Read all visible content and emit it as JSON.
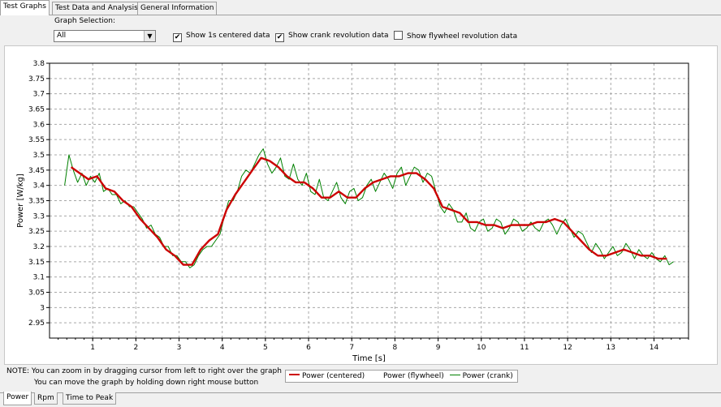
{
  "tabs_top": [
    "Test Graphs",
    "Test Data and Analysis",
    "General Information"
  ],
  "graph_selection": {
    "label": "Graph Selection:",
    "value": "All"
  },
  "checkboxes": [
    {
      "label": "Show 1s centered data",
      "checked": true
    },
    {
      "label": "Show crank revolution data",
      "checked": true
    },
    {
      "label": "Show flywheel revolution data",
      "checked": false
    }
  ],
  "note": {
    "line1": "NOTE:   You can zoom in by dragging cursor from left to right over the graph",
    "line2": "You can move the graph by holding down right mouse button"
  },
  "legend": {
    "items": [
      {
        "label": "Power (centered)",
        "color": "#cc0000"
      },
      {
        "label": "Power (flywheel)",
        "color": "#ffffff"
      },
      {
        "label": "Power (crank)",
        "color": "#008000"
      }
    ]
  },
  "tabs_bottom": [
    "Power",
    "Rpm",
    "Time to Peak"
  ],
  "chart_data": {
    "type": "line",
    "xlabel": "Time [s]",
    "ylabel": "Power [W/kg]",
    "xlim": [
      0,
      14.8
    ],
    "ylim": [
      2.9,
      3.8
    ],
    "xticks": [
      1,
      2,
      3,
      4,
      5,
      6,
      7,
      8,
      9,
      10,
      11,
      12,
      13,
      14
    ],
    "yticks": [
      "2.95",
      "3",
      "3.05",
      "3.1",
      "3.15",
      "3.2",
      "3.25",
      "3.3",
      "3.35",
      "3.4",
      "3.45",
      "3.5",
      "3.55",
      "3.6",
      "3.65",
      "3.7",
      "3.75",
      "3.8"
    ],
    "grid": true,
    "series": [
      {
        "name": "Power (centered)",
        "color": "#cc0000",
        "x": [
          0.5,
          0.7,
          0.9,
          1.1,
          1.3,
          1.5,
          1.7,
          1.9,
          2.1,
          2.3,
          2.5,
          2.7,
          2.9,
          3.1,
          3.3,
          3.5,
          3.7,
          3.9,
          4.1,
          4.3,
          4.5,
          4.7,
          4.9,
          5.1,
          5.3,
          5.5,
          5.7,
          5.9,
          6.1,
          6.3,
          6.5,
          6.7,
          6.9,
          7.1,
          7.3,
          7.5,
          7.7,
          7.9,
          8.1,
          8.3,
          8.5,
          8.7,
          8.9,
          9.1,
          9.3,
          9.5,
          9.7,
          9.9,
          10.1,
          10.3,
          10.5,
          10.7,
          10.9,
          11.1,
          11.3,
          11.5,
          11.7,
          11.9,
          12.1,
          12.3,
          12.5,
          12.7,
          12.9,
          13.1,
          13.3,
          13.5,
          13.7,
          13.9,
          14.1,
          14.3
        ],
        "y": [
          3.46,
          3.44,
          3.42,
          3.43,
          3.39,
          3.38,
          3.35,
          3.33,
          3.29,
          3.26,
          3.23,
          3.19,
          3.17,
          3.14,
          3.14,
          3.19,
          3.22,
          3.24,
          3.32,
          3.37,
          3.41,
          3.45,
          3.49,
          3.48,
          3.46,
          3.43,
          3.41,
          3.41,
          3.39,
          3.36,
          3.36,
          3.38,
          3.36,
          3.36,
          3.39,
          3.41,
          3.42,
          3.43,
          3.43,
          3.44,
          3.44,
          3.42,
          3.39,
          3.33,
          3.32,
          3.31,
          3.28,
          3.28,
          3.27,
          3.27,
          3.26,
          3.27,
          3.27,
          3.27,
          3.28,
          3.28,
          3.29,
          3.28,
          3.25,
          3.22,
          3.19,
          3.17,
          3.17,
          3.18,
          3.19,
          3.18,
          3.17,
          3.17,
          3.16,
          3.16
        ]
      },
      {
        "name": "Power (crank)",
        "color": "#008000",
        "x": [
          0.35,
          0.45,
          0.55,
          0.65,
          0.75,
          0.85,
          0.95,
          1.05,
          1.15,
          1.25,
          1.35,
          1.45,
          1.55,
          1.65,
          1.75,
          1.85,
          1.95,
          2.05,
          2.15,
          2.25,
          2.35,
          2.45,
          2.55,
          2.65,
          2.75,
          2.85,
          2.95,
          3.05,
          3.15,
          3.25,
          3.35,
          3.45,
          3.55,
          3.65,
          3.75,
          3.85,
          3.95,
          4.05,
          4.15,
          4.25,
          4.35,
          4.45,
          4.55,
          4.65,
          4.75,
          4.85,
          4.95,
          5.05,
          5.15,
          5.25,
          5.35,
          5.45,
          5.55,
          5.65,
          5.75,
          5.85,
          5.95,
          6.05,
          6.15,
          6.25,
          6.35,
          6.45,
          6.55,
          6.65,
          6.75,
          6.85,
          6.95,
          7.05,
          7.15,
          7.25,
          7.35,
          7.45,
          7.55,
          7.65,
          7.75,
          7.85,
          7.95,
          8.05,
          8.15,
          8.25,
          8.35,
          8.45,
          8.55,
          8.65,
          8.75,
          8.85,
          8.95,
          9.05,
          9.15,
          9.25,
          9.35,
          9.45,
          9.55,
          9.65,
          9.75,
          9.85,
          9.95,
          10.05,
          10.15,
          10.25,
          10.35,
          10.45,
          10.55,
          10.65,
          10.75,
          10.85,
          10.95,
          11.05,
          11.15,
          11.25,
          11.35,
          11.45,
          11.55,
          11.65,
          11.75,
          11.85,
          11.95,
          12.05,
          12.15,
          12.25,
          12.35,
          12.45,
          12.55,
          12.65,
          12.75,
          12.85,
          12.95,
          13.05,
          13.15,
          13.25,
          13.35,
          13.45,
          13.55,
          13.65,
          13.75,
          13.85,
          13.95,
          14.05,
          14.15,
          14.25,
          14.35,
          14.45
        ],
        "y": [
          3.4,
          3.5,
          3.45,
          3.41,
          3.44,
          3.4,
          3.43,
          3.41,
          3.44,
          3.38,
          3.39,
          3.37,
          3.37,
          3.34,
          3.35,
          3.33,
          3.33,
          3.31,
          3.29,
          3.26,
          3.27,
          3.24,
          3.23,
          3.2,
          3.2,
          3.17,
          3.17,
          3.15,
          3.15,
          3.13,
          3.14,
          3.17,
          3.19,
          3.2,
          3.2,
          3.22,
          3.24,
          3.3,
          3.35,
          3.35,
          3.38,
          3.43,
          3.45,
          3.44,
          3.47,
          3.5,
          3.52,
          3.47,
          3.44,
          3.46,
          3.49,
          3.43,
          3.42,
          3.47,
          3.42,
          3.4,
          3.44,
          3.38,
          3.37,
          3.42,
          3.36,
          3.35,
          3.38,
          3.41,
          3.36,
          3.34,
          3.38,
          3.39,
          3.35,
          3.36,
          3.4,
          3.42,
          3.38,
          3.41,
          3.44,
          3.42,
          3.39,
          3.44,
          3.46,
          3.4,
          3.43,
          3.46,
          3.45,
          3.41,
          3.44,
          3.43,
          3.38,
          3.33,
          3.31,
          3.34,
          3.32,
          3.28,
          3.28,
          3.31,
          3.26,
          3.25,
          3.28,
          3.29,
          3.25,
          3.26,
          3.29,
          3.28,
          3.24,
          3.26,
          3.29,
          3.28,
          3.25,
          3.26,
          3.28,
          3.26,
          3.25,
          3.28,
          3.29,
          3.27,
          3.24,
          3.27,
          3.29,
          3.26,
          3.23,
          3.25,
          3.24,
          3.21,
          3.18,
          3.21,
          3.19,
          3.16,
          3.18,
          3.2,
          3.17,
          3.18,
          3.21,
          3.19,
          3.16,
          3.19,
          3.17,
          3.16,
          3.18,
          3.16,
          3.15,
          3.17,
          3.14,
          3.15
        ]
      }
    ]
  }
}
